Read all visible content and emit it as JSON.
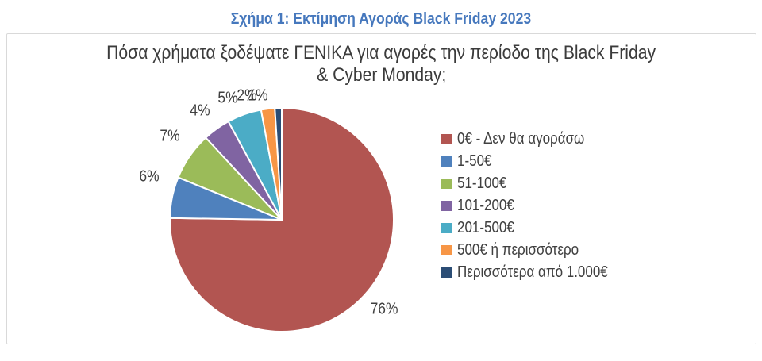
{
  "page": {
    "figure_caption": "Σχήμα 1: Εκτίμηση Αγοράς Black Friday 2023",
    "caption_color": "#4678bd"
  },
  "chart": {
    "title_lines": {
      "0": "Πόσα χρήματα ξοδέψατε ΓΕΝΙΚΑ για αγορές την περίοδο της Black Friday",
      "1": "& Cyber Monday;"
    }
  },
  "chart_data": {
    "type": "pie",
    "title": "Πόσα χρήματα ξοδέψατε ΓΕΝΙΚΑ για αγορές την περίοδο της Black Friday & Cyber Monday;",
    "labels": [
      "0€ - Δεν θα αγοράσω",
      "1-50€",
      "51-100€",
      "101-200€",
      "201-500€",
      "500€ ή περισσότερο",
      "Περισσότερα από 1.000€"
    ],
    "values_percent": [
      76,
      6,
      7,
      4,
      5,
      2,
      1
    ],
    "data_labels": [
      "76%",
      "6%",
      "7%",
      "4%",
      "5%",
      "2%",
      "1%"
    ],
    "colors": [
      "#b25551",
      "#4f81bd",
      "#9bbb59",
      "#8064a2",
      "#4bacc6",
      "#f79646",
      "#2b4d75"
    ],
    "slice_border_color": "#ffffff",
    "legend_position": "right",
    "start_angle_deg": 0,
    "direction": "clockwise"
  }
}
